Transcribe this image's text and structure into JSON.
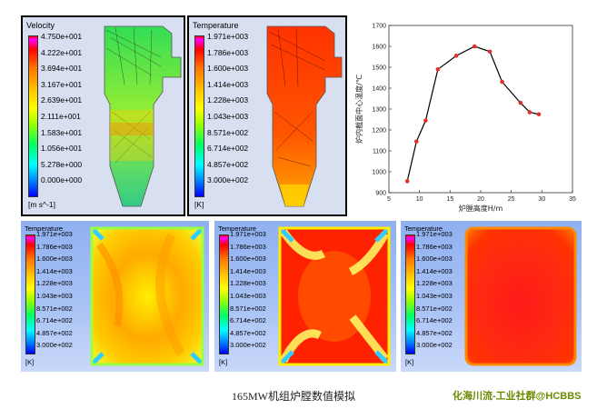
{
  "panel_velocity": {
    "legend_title": "Velocity",
    "ticks": [
      "4.750e+001",
      "4.222e+001",
      "3.694e+001",
      "3.167e+001",
      "2.639e+001",
      "2.111e+001",
      "1.583e+001",
      "1.056e+001",
      "5.278e+000",
      "0.000e+000"
    ],
    "unit": "[m s^-1]"
  },
  "panel_temperature": {
    "legend_title": "Temperature",
    "ticks": [
      "1.971e+003",
      "1.786e+003",
      "1.600e+003",
      "1.414e+003",
      "1.228e+003",
      "1.043e+003",
      "8.571e+002",
      "6.714e+002",
      "4.857e+002",
      "3.000e+002"
    ],
    "unit": "[K]"
  },
  "sections": [
    {
      "legend_title": "Temperature",
      "ticks": [
        "1.971e+003",
        "1.786e+003",
        "1.600e+003",
        "1.414e+003",
        "1.228e+003",
        "1.043e+003",
        "8.571e+002",
        "6.714e+002",
        "4.857e+002",
        "3.000e+002"
      ],
      "unit": "[K]"
    },
    {
      "legend_title": "Temperature",
      "ticks": [
        "1.971e+003",
        "1.786e+003",
        "1.600e+003",
        "1.414e+003",
        "1.228e+003",
        "1.043e+003",
        "8.571e+002",
        "6.714e+002",
        "4.857e+002",
        "3.000e+002"
      ],
      "unit": "[K]"
    },
    {
      "legend_title": "Temperature",
      "ticks": [
        "1.971e+003",
        "1.786e+003",
        "1.600e+003",
        "1.414e+003",
        "1.228e+003",
        "1.043e+003",
        "8.571e+002",
        "6.714e+002",
        "4.857e+002",
        "3.000e+002"
      ],
      "unit": "[K]"
    }
  ],
  "chart_data": {
    "type": "line",
    "xlabel": "炉膛高度H/m",
    "ylabel": "炉内截面中心温度/℃",
    "xlim": [
      5,
      35
    ],
    "ylim": [
      900,
      1700
    ],
    "xticks": [
      5,
      10,
      15,
      20,
      25,
      30,
      35
    ],
    "yticks": [
      900,
      1000,
      1100,
      1200,
      1300,
      1400,
      1500,
      1600,
      1700
    ],
    "x": [
      8,
      9.5,
      11,
      13,
      16,
      19,
      21.5,
      23.5,
      26.5,
      28,
      29.5
    ],
    "y": [
      955,
      1145,
      1245,
      1490,
      1555,
      1600,
      1575,
      1430,
      1330,
      1285,
      1275
    ],
    "line_color": "#000000",
    "marker_color": "#e0302a"
  },
  "caption": "165MW机组炉膛数值模拟",
  "watermark": "化海川流-工业社群@HCBBS"
}
